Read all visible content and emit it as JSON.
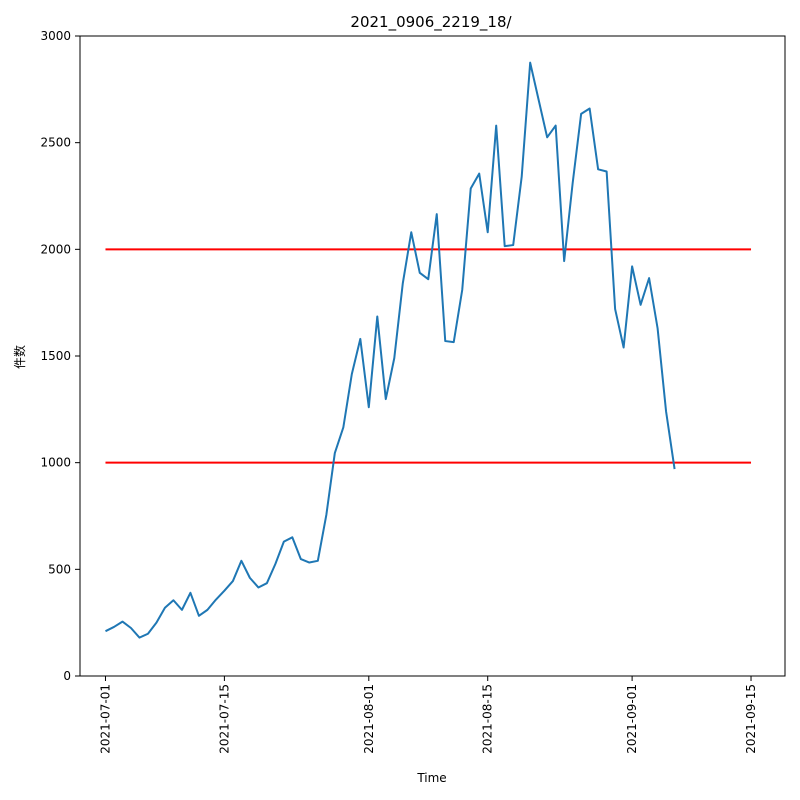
{
  "chart_data": {
    "type": "line",
    "title": "2021_0906_2219_18/",
    "xlabel": "Time",
    "ylabel": "件数",
    "x_ticks": [
      "2021-07-01",
      "2021-07-15",
      "2021-08-01",
      "2021-08-15",
      "2021-09-01",
      "2021-09-15"
    ],
    "y_ticks": [
      "0",
      "500",
      "1000",
      "1500",
      "2000",
      "2500",
      "3000"
    ],
    "xlim": [
      "2021-06-28",
      "2021-09-19"
    ],
    "ylim": [
      0,
      3000
    ],
    "grid": false,
    "colors": {
      "series": "#1f77b4",
      "threshold": "#ff0000"
    },
    "series": [
      {
        "x": [
          "2021-07-01",
          "2021-07-02",
          "2021-07-03",
          "2021-07-04",
          "2021-07-05",
          "2021-07-06",
          "2021-07-07",
          "2021-07-08",
          "2021-07-09",
          "2021-07-10",
          "2021-07-11",
          "2021-07-12",
          "2021-07-13",
          "2021-07-14",
          "2021-07-15",
          "2021-07-16",
          "2021-07-17",
          "2021-07-18",
          "2021-07-19",
          "2021-07-20",
          "2021-07-21",
          "2021-07-22",
          "2021-07-23",
          "2021-07-24",
          "2021-07-25",
          "2021-07-26",
          "2021-07-27",
          "2021-07-28",
          "2021-07-29",
          "2021-07-30",
          "2021-07-31",
          "2021-08-01",
          "2021-08-02",
          "2021-08-03",
          "2021-08-04",
          "2021-08-05",
          "2021-08-06",
          "2021-08-07",
          "2021-08-08",
          "2021-08-09",
          "2021-08-10",
          "2021-08-11",
          "2021-08-12",
          "2021-08-13",
          "2021-08-14",
          "2021-08-15",
          "2021-08-16",
          "2021-08-17",
          "2021-08-18",
          "2021-08-19",
          "2021-08-20",
          "2021-08-21",
          "2021-08-22",
          "2021-08-23",
          "2021-08-24",
          "2021-08-25",
          "2021-08-26",
          "2021-08-27",
          "2021-08-28",
          "2021-08-29",
          "2021-08-30",
          "2021-08-31",
          "2021-09-01",
          "2021-09-02",
          "2021-09-03",
          "2021-09-04",
          "2021-09-05",
          "2021-09-06"
        ],
        "values": [
          210,
          230,
          255,
          225,
          180,
          198,
          250,
          320,
          355,
          310,
          390,
          282,
          310,
          358,
          400,
          445,
          540,
          460,
          415,
          435,
          525,
          630,
          650,
          548,
          532,
          540,
          755,
          1045,
          1165,
          1415,
          1580,
          1260,
          1685,
          1298,
          1490,
          1840,
          2080,
          1890,
          1860,
          2165,
          1570,
          1565,
          1810,
          2285,
          2355,
          2080,
          2580,
          2015,
          2020,
          2340,
          2875,
          2700,
          2525,
          2580,
          1945,
          2310,
          2635,
          2660,
          2375,
          2365,
          1720,
          1540,
          1920,
          1740,
          1865,
          1630,
          1240,
          970
        ]
      }
    ],
    "thresholds": [
      {
        "value": 2000,
        "from": "2021-07-01",
        "to": "2021-09-15"
      },
      {
        "value": 1000,
        "from": "2021-07-01",
        "to": "2021-09-15"
      }
    ]
  }
}
